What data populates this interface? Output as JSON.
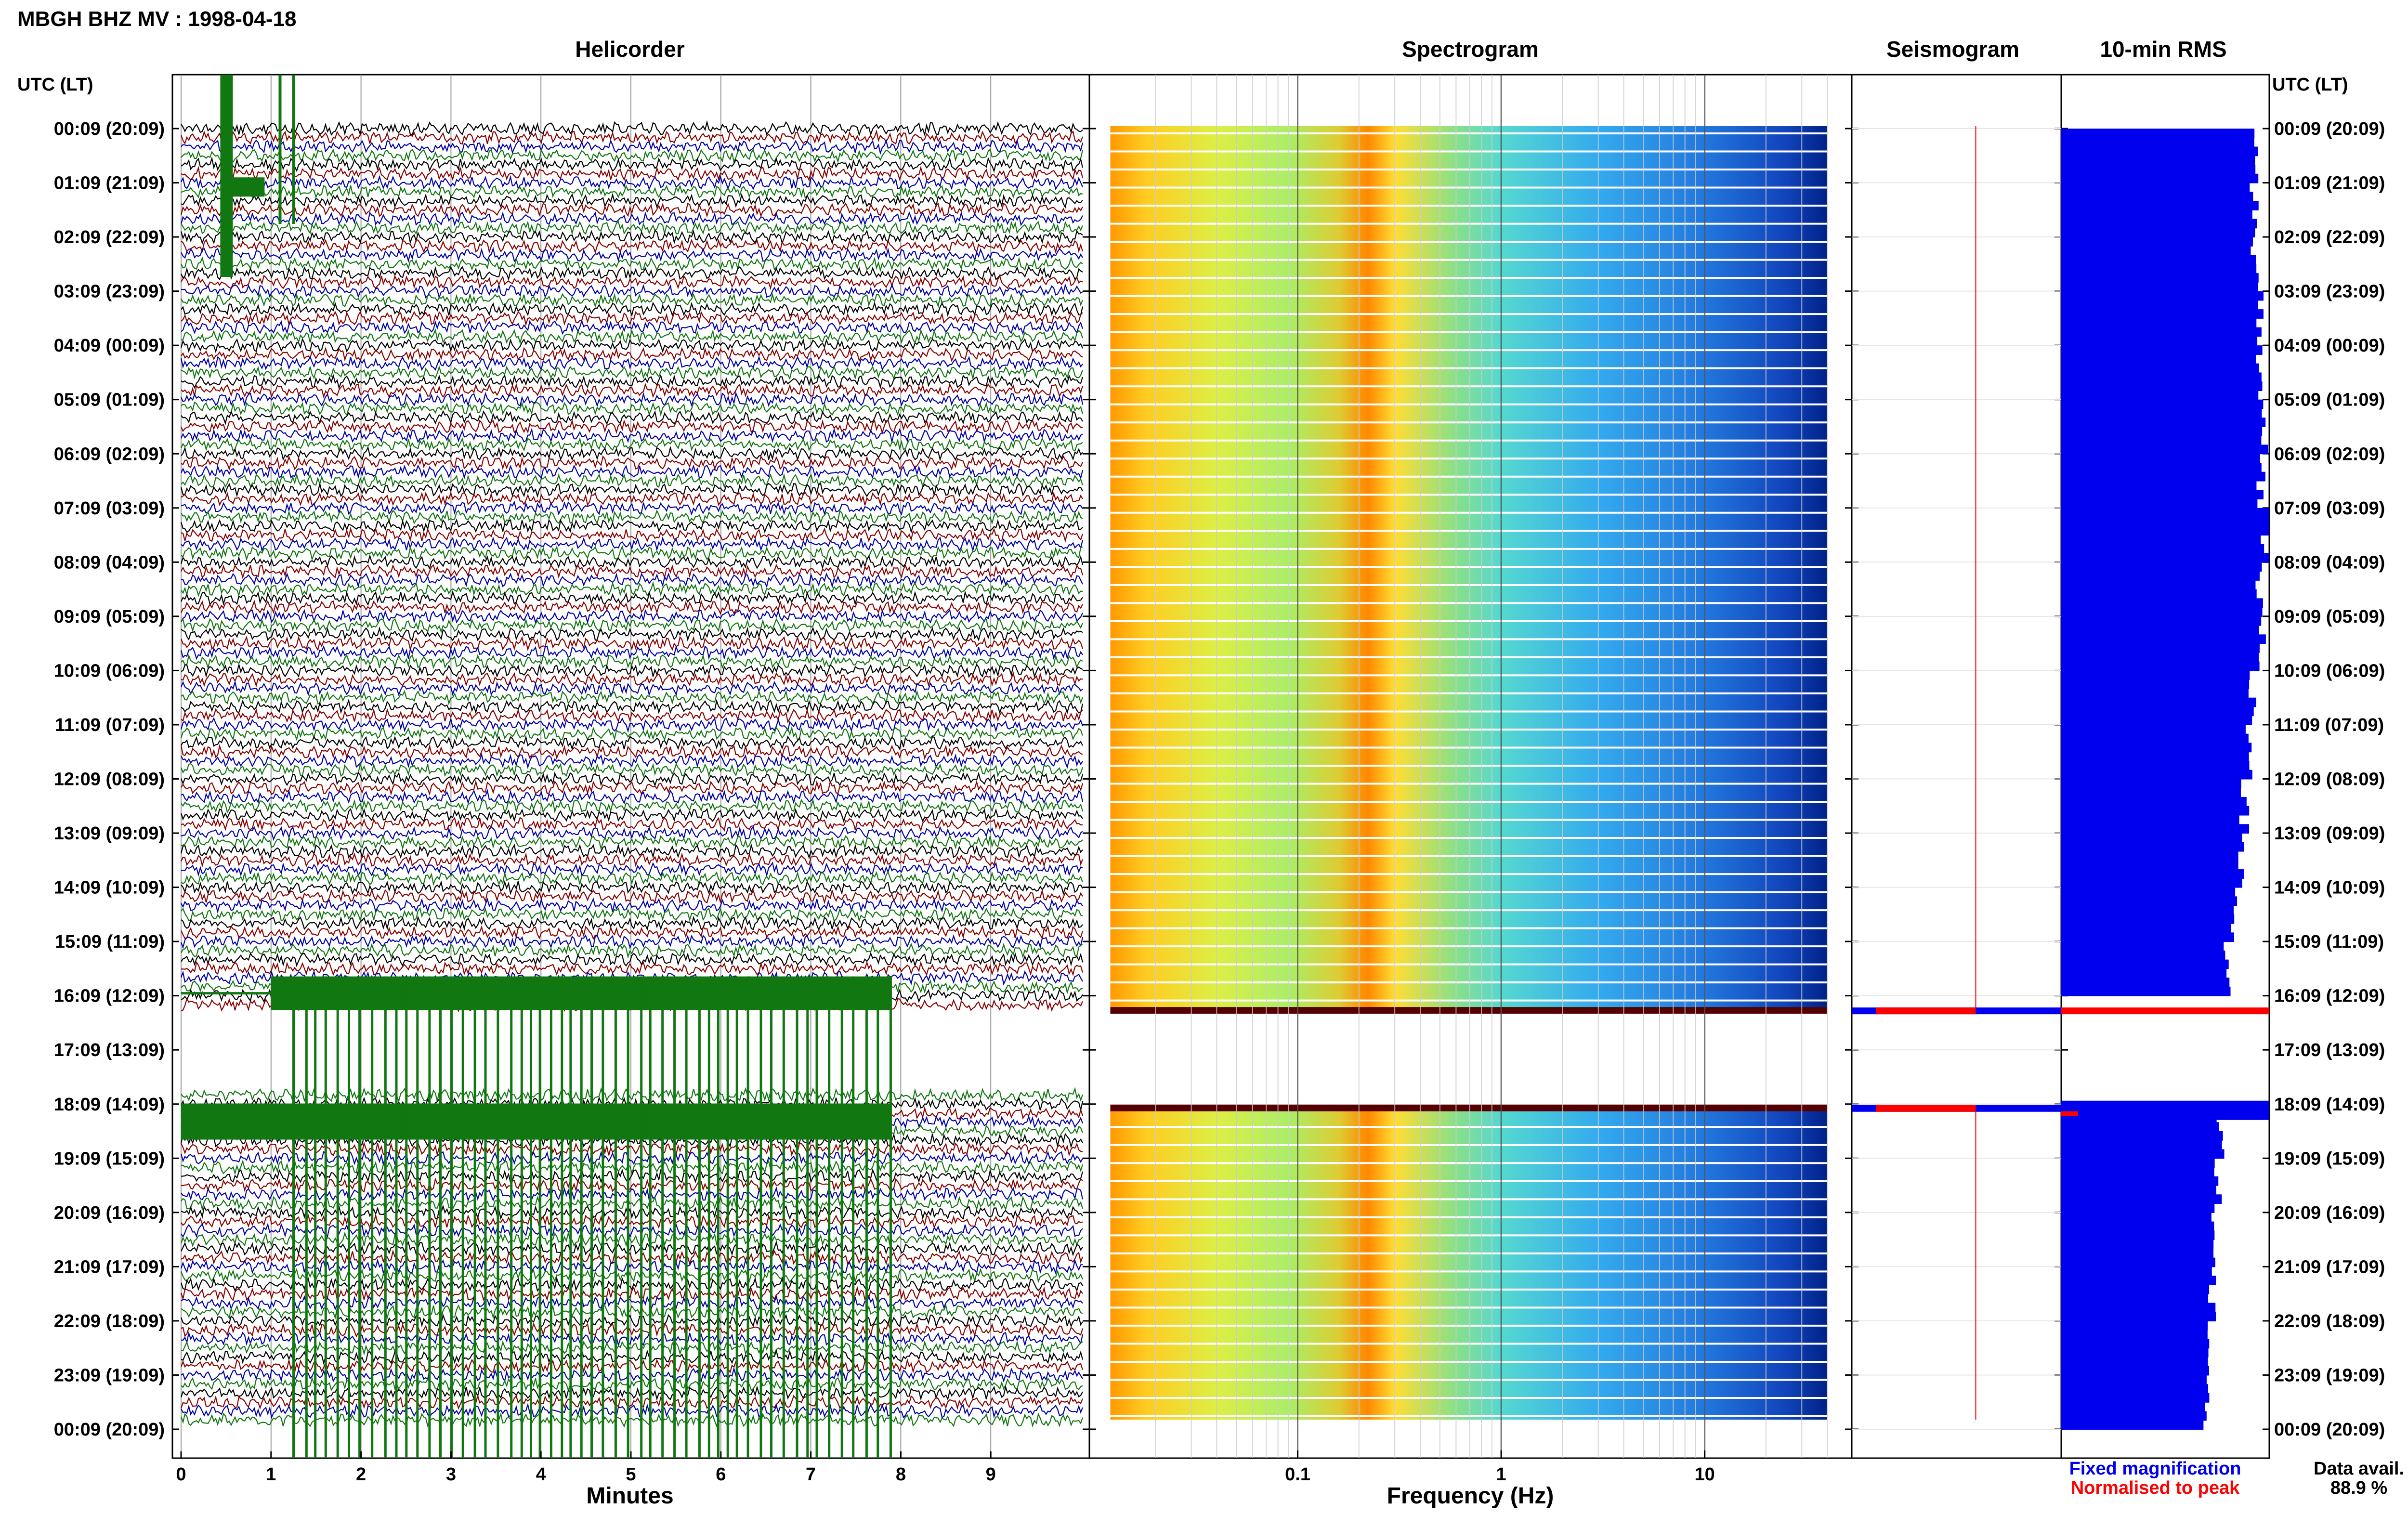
{
  "title": "MBGH BHZ MV : 1998-04-18",
  "panels": {
    "helicorder": "Helicorder",
    "spectrogram": "Spectrogram",
    "seismogram": "Seismogram",
    "rms": "10-min RMS"
  },
  "time_axis_label": "UTC (LT)",
  "time_labels": [
    "00:09 (20:09)",
    "01:09 (21:09)",
    "02:09 (22:09)",
    "03:09 (23:09)",
    "04:09 (00:09)",
    "05:09 (01:09)",
    "06:09 (02:09)",
    "07:09 (03:09)",
    "08:09 (04:09)",
    "09:09 (05:09)",
    "10:09 (06:09)",
    "11:09 (07:09)",
    "12:09 (08:09)",
    "13:09 (09:09)",
    "14:09 (10:09)",
    "15:09 (11:09)",
    "16:09 (12:09)",
    "17:09 (13:09)",
    "18:09 (14:09)",
    "19:09 (15:09)",
    "20:09 (16:09)",
    "21:09 (17:09)",
    "22:09 (18:09)",
    "23:09 (19:09)",
    "00:09 (20:09)"
  ],
  "legend": {
    "fixed": "Fixed magnification",
    "normalised": "Normalised to peak",
    "avail_label": "Data avail.",
    "avail_value": "88.9 %"
  },
  "colors": {
    "trace": [
      "#000000",
      "#8b0000",
      "#0000aa",
      "#117711"
    ],
    "rms_bar": "#0000ee",
    "normalised": "#ff0000",
    "fixed": "#0000ee"
  },
  "chart_data": [
    {
      "type": "line",
      "name": "helicorder",
      "xlabel": "Minutes",
      "x_ticks": [
        "0",
        "1",
        "2",
        "3",
        "4",
        "5",
        "6",
        "7",
        "8",
        "9"
      ],
      "xlim": [
        0,
        10
      ],
      "rows_per_hour": 6,
      "gap_hours": [
        16.33,
        18.0
      ],
      "transient_events_minutes": [
        0.5,
        1.1,
        1.25
      ]
    },
    {
      "type": "heatmap",
      "name": "spectrogram",
      "xlabel": "Frequency (Hz)",
      "x_scale": "log",
      "x_ticks": [
        "0.1",
        "1",
        "10"
      ],
      "xlim": [
        0.01,
        50
      ]
    },
    {
      "type": "bar",
      "name": "10-min RMS",
      "orientation": "horizontal",
      "hourly_relative_rms_before_gap": [
        0.94,
        0.93,
        0.93,
        0.95,
        0.96,
        0.97,
        0.96,
        0.98,
        0.95,
        0.96,
        0.92,
        0.9,
        0.88,
        0.86,
        0.83,
        0.8
      ],
      "hourly_relative_rms_after_gap": [
        0.76,
        0.75,
        0.74,
        0.72,
        0.71,
        0.7
      ]
    }
  ]
}
